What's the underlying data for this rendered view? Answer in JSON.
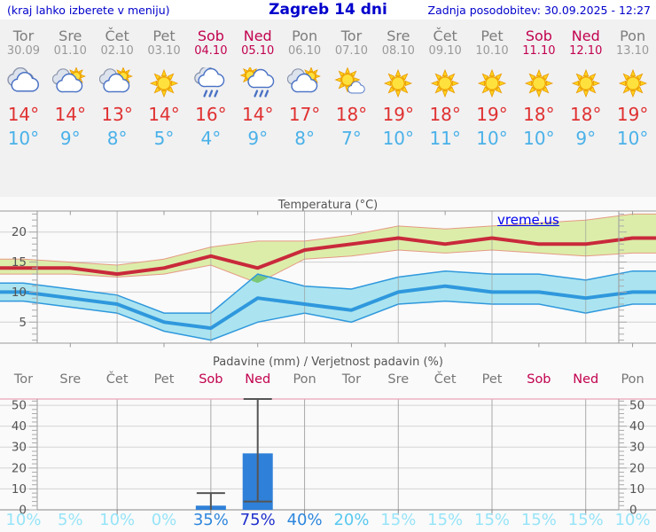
{
  "header": {
    "left_note": "(kraj lahko izberete v meniju)",
    "title": "Zagreb 14 dni",
    "updated": "Zadnja posodobitev: 30.09.2025 - 12:27"
  },
  "watermark": "vreme.us",
  "forecast": {
    "days": [
      {
        "name": "Tor",
        "date": "30.09",
        "weekend": false,
        "icon": "cloudy",
        "tmax": "14°",
        "tmin": "10°"
      },
      {
        "name": "Sre",
        "date": "01.10",
        "weekend": false,
        "icon": "sun-cloud",
        "tmax": "14°",
        "tmin": "9°"
      },
      {
        "name": "Čet",
        "date": "02.10",
        "weekend": false,
        "icon": "sun-cloud",
        "tmax": "13°",
        "tmin": "8°"
      },
      {
        "name": "Pet",
        "date": "03.10",
        "weekend": false,
        "icon": "sunny",
        "tmax": "14°",
        "tmin": "5°"
      },
      {
        "name": "Sob",
        "date": "04.10",
        "weekend": true,
        "icon": "rain",
        "tmax": "16°",
        "tmin": "4°"
      },
      {
        "name": "Ned",
        "date": "05.10",
        "weekend": true,
        "icon": "sun-rain",
        "tmax": "14°",
        "tmin": "9°"
      },
      {
        "name": "Pon",
        "date": "06.10",
        "weekend": false,
        "icon": "sun-cloud",
        "tmax": "17°",
        "tmin": "8°"
      },
      {
        "name": "Tor",
        "date": "07.10",
        "weekend": false,
        "icon": "mostly-sunny",
        "tmax": "18°",
        "tmin": "7°"
      },
      {
        "name": "Sre",
        "date": "08.10",
        "weekend": false,
        "icon": "sunny",
        "tmax": "19°",
        "tmin": "10°"
      },
      {
        "name": "Čet",
        "date": "09.10",
        "weekend": false,
        "icon": "sunny",
        "tmax": "18°",
        "tmin": "11°"
      },
      {
        "name": "Pet",
        "date": "10.10",
        "weekend": false,
        "icon": "sunny",
        "tmax": "19°",
        "tmin": "10°"
      },
      {
        "name": "Sob",
        "date": "11.10",
        "weekend": true,
        "icon": "sunny",
        "tmax": "18°",
        "tmin": "10°"
      },
      {
        "name": "Ned",
        "date": "12.10",
        "weekend": true,
        "icon": "sunny",
        "tmax": "18°",
        "tmin": "9°"
      },
      {
        "name": "Pon",
        "date": "13.10",
        "weekend": false,
        "icon": "sunny",
        "tmax": "19°",
        "tmin": "10°"
      }
    ]
  },
  "chart_data": [
    {
      "type": "line",
      "title": "Temperatura (°C)",
      "categories": [
        "Tor",
        "Sre",
        "Čet",
        "Pet",
        "Sob",
        "Ned",
        "Pon",
        "Tor",
        "Sre",
        "Čet",
        "Pet",
        "Sob",
        "Ned",
        "Pon"
      ],
      "ylim": [
        1.5,
        23.5
      ],
      "yticks": [
        5,
        10,
        15,
        20
      ],
      "grid": true,
      "legend": "none",
      "series": [
        {
          "name": "max_temp",
          "values": [
            14,
            14,
            13,
            14,
            16,
            14,
            17,
            18,
            19,
            18,
            19,
            18,
            18,
            19
          ]
        },
        {
          "name": "max_upper",
          "values": [
            15.5,
            15,
            14.5,
            15.5,
            17.5,
            18.5,
            18.5,
            19.5,
            21,
            20.5,
            21,
            21.5,
            22,
            23
          ]
        },
        {
          "name": "max_lower",
          "values": [
            13,
            13,
            12.5,
            13,
            14.5,
            11.5,
            15.5,
            16,
            17,
            16.5,
            17,
            16.5,
            16,
            16.5
          ]
        },
        {
          "name": "min_temp",
          "values": [
            10,
            9,
            8,
            5,
            4,
            9,
            8,
            7,
            10,
            11,
            10,
            10,
            9,
            10
          ]
        },
        {
          "name": "min_upper",
          "values": [
            11.5,
            10.5,
            9.5,
            6.5,
            6.5,
            13,
            11,
            10.5,
            12.5,
            13.5,
            13,
            13,
            12,
            13.5
          ]
        },
        {
          "name": "min_lower",
          "values": [
            8.5,
            7.5,
            6.5,
            3.5,
            2,
            5,
            6.5,
            5,
            8,
            8.5,
            8,
            8,
            6.5,
            8
          ]
        }
      ]
    },
    {
      "type": "bar",
      "title": "Padavine (mm) / Verjetnost padavin (%)",
      "categories": [
        "Tor",
        "Sre",
        "Čet",
        "Pet",
        "Sob",
        "Ned",
        "Pon",
        "Tor",
        "Sre",
        "Čet",
        "Pet",
        "Sob",
        "Ned",
        "Pon"
      ],
      "weekend_indices": [
        4,
        5,
        11,
        12
      ],
      "ylim": [
        0,
        53
      ],
      "yticks": [
        0,
        10,
        20,
        30,
        40,
        50
      ],
      "values": [
        0,
        0,
        0,
        0,
        2,
        27,
        0,
        0,
        0,
        0,
        0,
        0,
        0,
        0
      ],
      "whiskers": [
        null,
        null,
        null,
        null,
        {
          "low": 0,
          "high": 8
        },
        {
          "low": 4,
          "high": 53
        },
        null,
        null,
        null,
        null,
        null,
        null,
        null,
        null
      ],
      "probabilities": [
        "10%",
        "5%",
        "10%",
        "0%",
        "35%",
        "75%",
        "40%",
        "20%",
        "15%",
        "15%",
        "15%",
        "15%",
        "15%",
        "10%"
      ]
    }
  ],
  "colors": {
    "header_blue": "#0000cc",
    "weekday_gray": "#7d7d7d",
    "date_gray": "#9a9a9a",
    "weekend_red": "#c2024e",
    "tmax_red": "#e03131",
    "tmin_blue": "#4ab1e8",
    "max_line": "#c9293b",
    "max_band": "#dcedaa",
    "max_band_edge": "#e59a84",
    "min_line": "#2f98dd",
    "min_band": "#abe4f0",
    "overlap_band": "#7cc878",
    "bar_blue": "#2f80d8",
    "whisker_gray": "#555555",
    "pink_border": "#eba3b6",
    "prob_vhigh": "#2030cc",
    "prob_high": "#2e86dd",
    "prob_mid": "#58c8ef",
    "prob_low": "#97e4f8"
  }
}
